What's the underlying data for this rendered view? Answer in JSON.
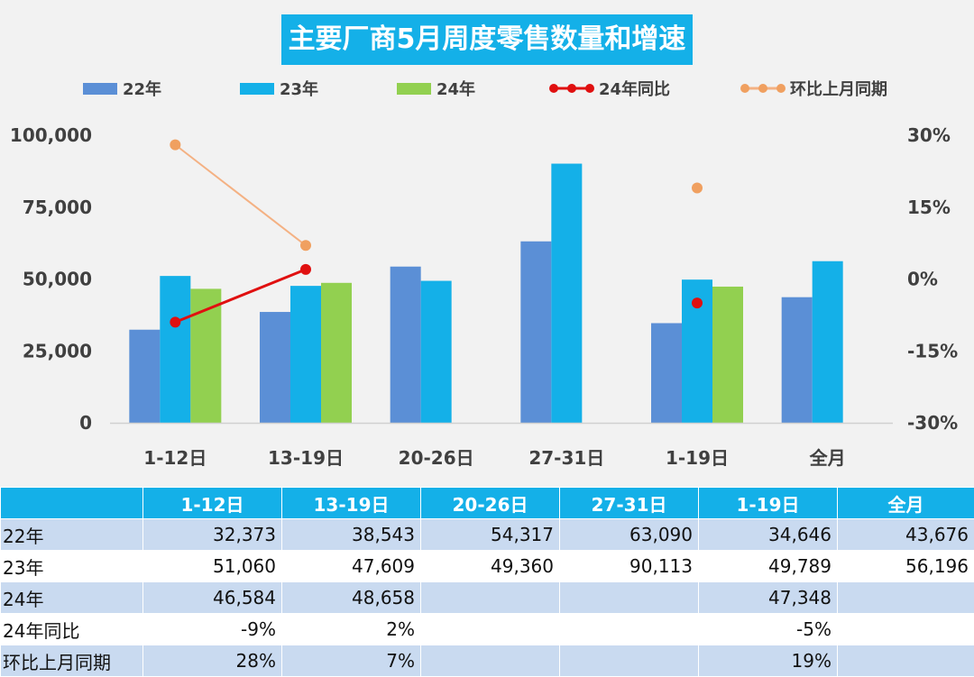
{
  "chart_data": {
    "type": "bar",
    "title": "主要厂商5月周度零售数量和增速",
    "categories": [
      "1-12日",
      "13-19日",
      "20-26日",
      "27-31日",
      "1-19日",
      "全月"
    ],
    "series": [
      {
        "name": "22年",
        "kind": "bar",
        "color": "#5b8fd6",
        "values": [
          32373,
          38543,
          54317,
          63090,
          34646,
          43676
        ]
      },
      {
        "name": "23年",
        "kind": "bar",
        "color": "#14b0e8",
        "values": [
          51060,
          47609,
          49360,
          90113,
          49789,
          56196
        ]
      },
      {
        "name": "24年",
        "kind": "bar",
        "color": "#92d050",
        "values": [
          46584,
          48658,
          null,
          null,
          47348,
          null
        ]
      },
      {
        "name": "24年同比",
        "kind": "line",
        "axis": "right",
        "color": "#e01010",
        "values": [
          -9,
          2,
          null,
          null,
          -5,
          null
        ]
      },
      {
        "name": "环比上月同期",
        "kind": "line",
        "axis": "right",
        "color": "#f4b183",
        "marker_color": "#f0a060",
        "values": [
          28,
          7,
          null,
          null,
          19,
          null
        ]
      }
    ],
    "y_left": {
      "min": 0,
      "max": 100000,
      "ticks": [
        "0",
        "25,000",
        "50,000",
        "75,000",
        "100,000"
      ]
    },
    "y_right": {
      "min": -30,
      "max": 30,
      "ticks": [
        "-30%",
        "-15%",
        "0%",
        "15%",
        "30%"
      ]
    },
    "legend_position": "top",
    "grid": false
  },
  "table": {
    "headers": [
      "",
      "1-12日",
      "13-19日",
      "20-26日",
      "27-31日",
      "1-19日",
      "全月"
    ],
    "rows": [
      [
        "22年",
        "32,373",
        "38,543",
        "54,317",
        "63,090",
        "34,646",
        "43,676"
      ],
      [
        "23年",
        "51,060",
        "47,609",
        "49,360",
        "90,113",
        "49,789",
        "56,196"
      ],
      [
        "24年",
        "46,584",
        "48,658",
        "",
        "",
        "47,348",
        ""
      ],
      [
        "24年同比",
        "-9%",
        "2%",
        "",
        "",
        "-5%",
        ""
      ],
      [
        "环比上月同期",
        "28%",
        "7%",
        "",
        "",
        "19%",
        ""
      ]
    ]
  }
}
